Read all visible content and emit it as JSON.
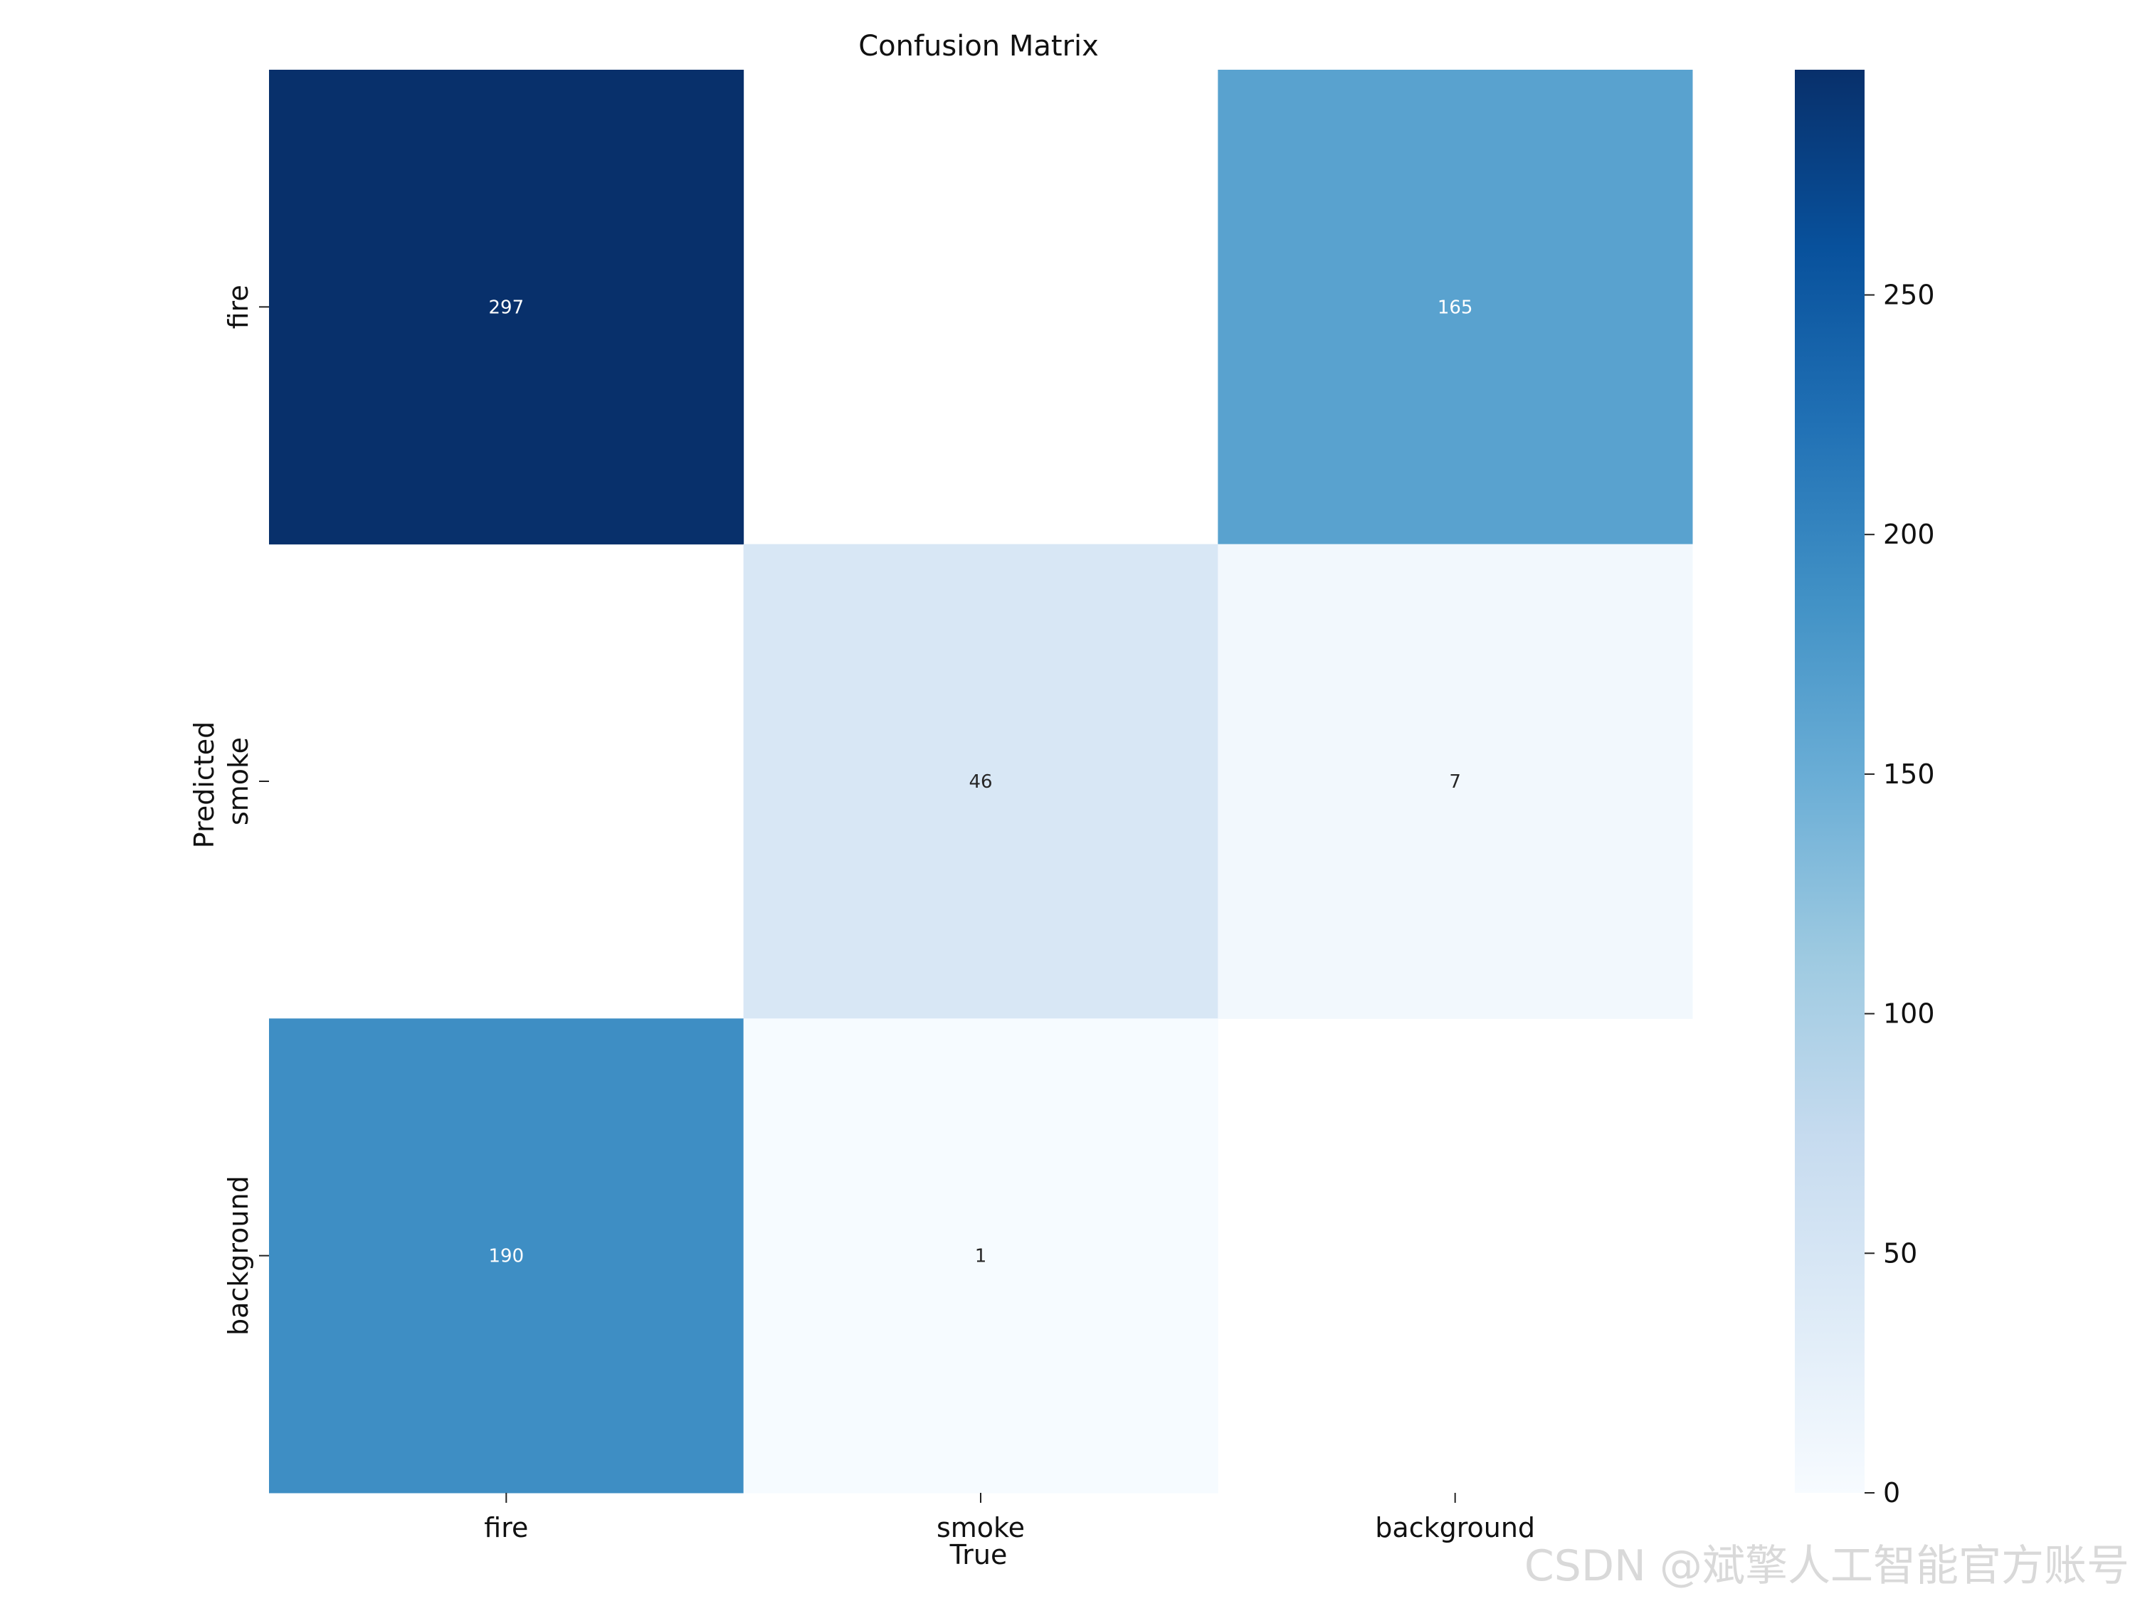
{
  "chart_data": {
    "type": "heatmap",
    "title": "Confusion Matrix",
    "xlabel": "True",
    "ylabel": "Predicted",
    "x_categories": [
      "fire",
      "smoke",
      "background"
    ],
    "y_categories": [
      "fire",
      "smoke",
      "background"
    ],
    "values": [
      [
        297,
        null,
        165
      ],
      [
        null,
        46,
        7
      ],
      [
        190,
        1,
        null
      ]
    ],
    "colormap": "Blues",
    "colorbar": {
      "min": 0,
      "max": 297,
      "ticks": [
        0,
        50,
        100,
        150,
        200,
        250
      ]
    },
    "grid": false
  },
  "watermark": "CSDN @斌擎人工智能官方账号"
}
